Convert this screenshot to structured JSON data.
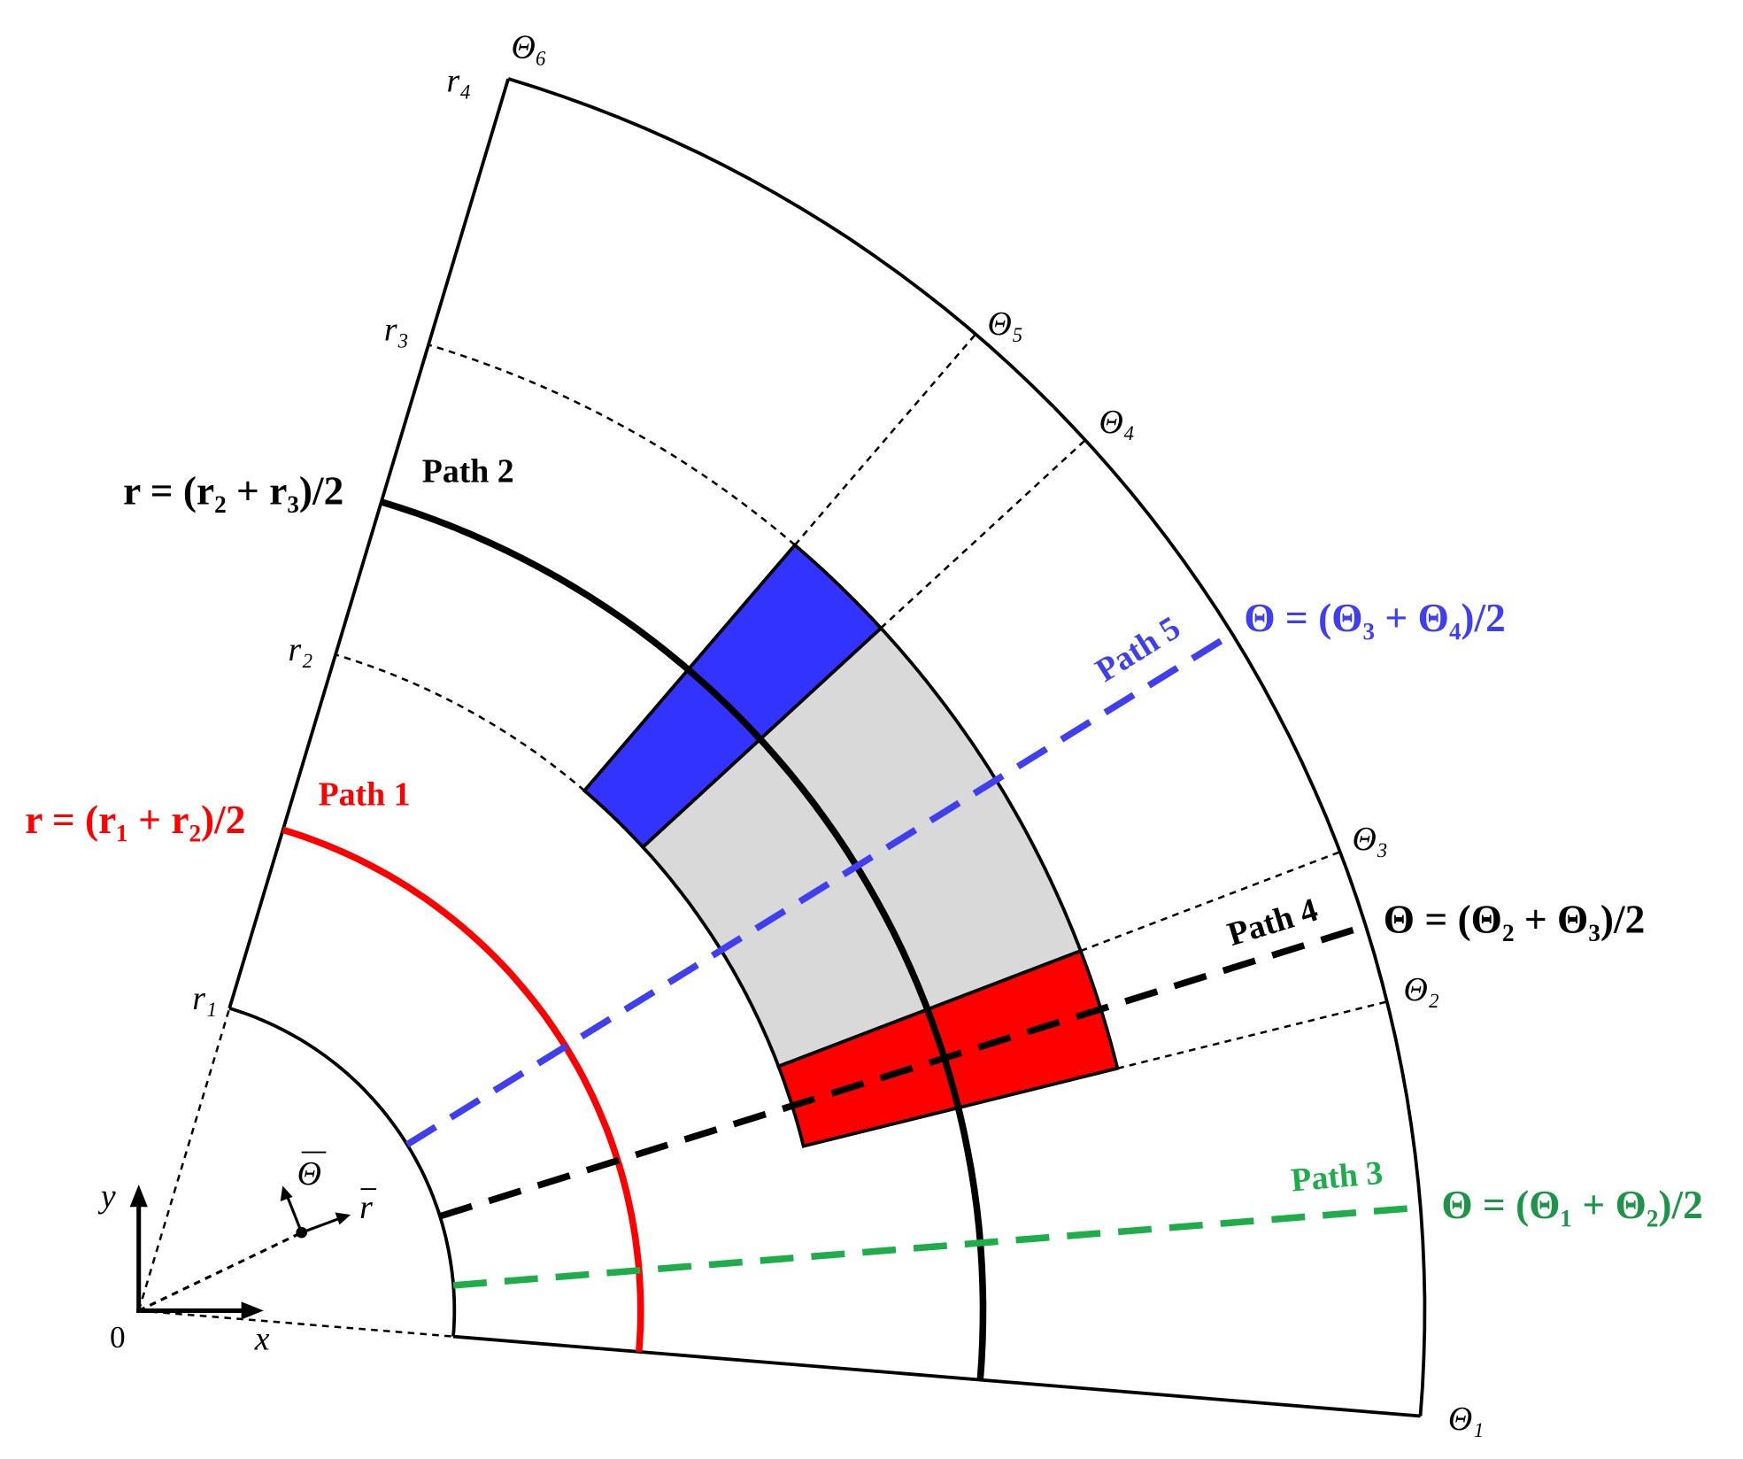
{
  "radius_labels": [
    "r₁",
    "r₂",
    "r₃",
    "r₄"
  ],
  "angle_labels": [
    "Θ₁",
    "Θ₂",
    "Θ₃",
    "Θ₄",
    "Θ₅",
    "Θ₆"
  ],
  "paths": [
    {
      "name": "Path 1",
      "equation": "r = (r₁ + r₂)/2"
    },
    {
      "name": "Path 2",
      "equation": "r = (r₂ + r₃)/2"
    },
    {
      "name": "Path 3",
      "equation": "Θ = (Θ₁ + Θ₂)/2"
    },
    {
      "name": "Path 4",
      "equation": "Θ = (Θ₂ + Θ₃)/2"
    },
    {
      "name": "Path 5",
      "equation": "Θ = (Θ₃ + Θ₄)/2"
    }
  ],
  "axes": {
    "x": "x",
    "y": "y",
    "origin": "0",
    "r_vector": "r",
    "theta_vector": "Θ"
  }
}
